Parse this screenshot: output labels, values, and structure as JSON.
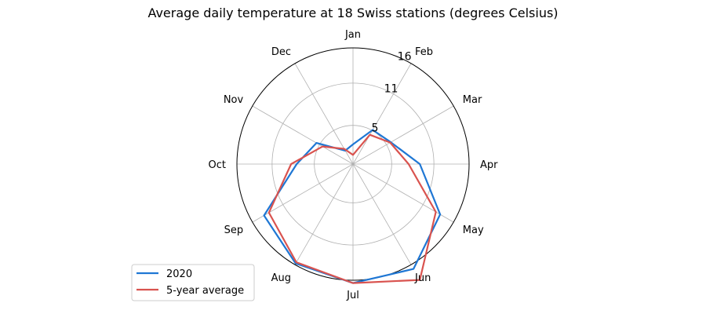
{
  "chart_data": {
    "type": "radar",
    "title": "Average daily temperature at 18 Swiss stations (degrees Celsius)",
    "categories": [
      "Jan",
      "Feb",
      "Mar",
      "Apr",
      "May",
      "Jun",
      "Jul",
      "Aug",
      "Sep",
      "Oct",
      "Nov",
      "Dec"
    ],
    "radial_ticks": [
      5,
      11,
      16
    ],
    "rlim": [
      -0.5,
      16
    ],
    "series": [
      {
        "name": "2020",
        "color": "#1f77d4",
        "values": [
          2.3,
          5.1,
          5.7,
          9.0,
          13.8,
          16.7,
          16.4,
          15.8,
          14.1,
          7.5,
          5.5,
          1.7
        ]
      },
      {
        "name": "5-year average",
        "color": "#d9534f",
        "values": [
          0.8,
          4.3,
          5.6,
          7.4,
          13.1,
          18.5,
          16.4,
          15.6,
          13.3,
          8.3,
          4.5,
          2.0
        ]
      }
    ],
    "grid": true,
    "legend_position": "lower-left"
  }
}
